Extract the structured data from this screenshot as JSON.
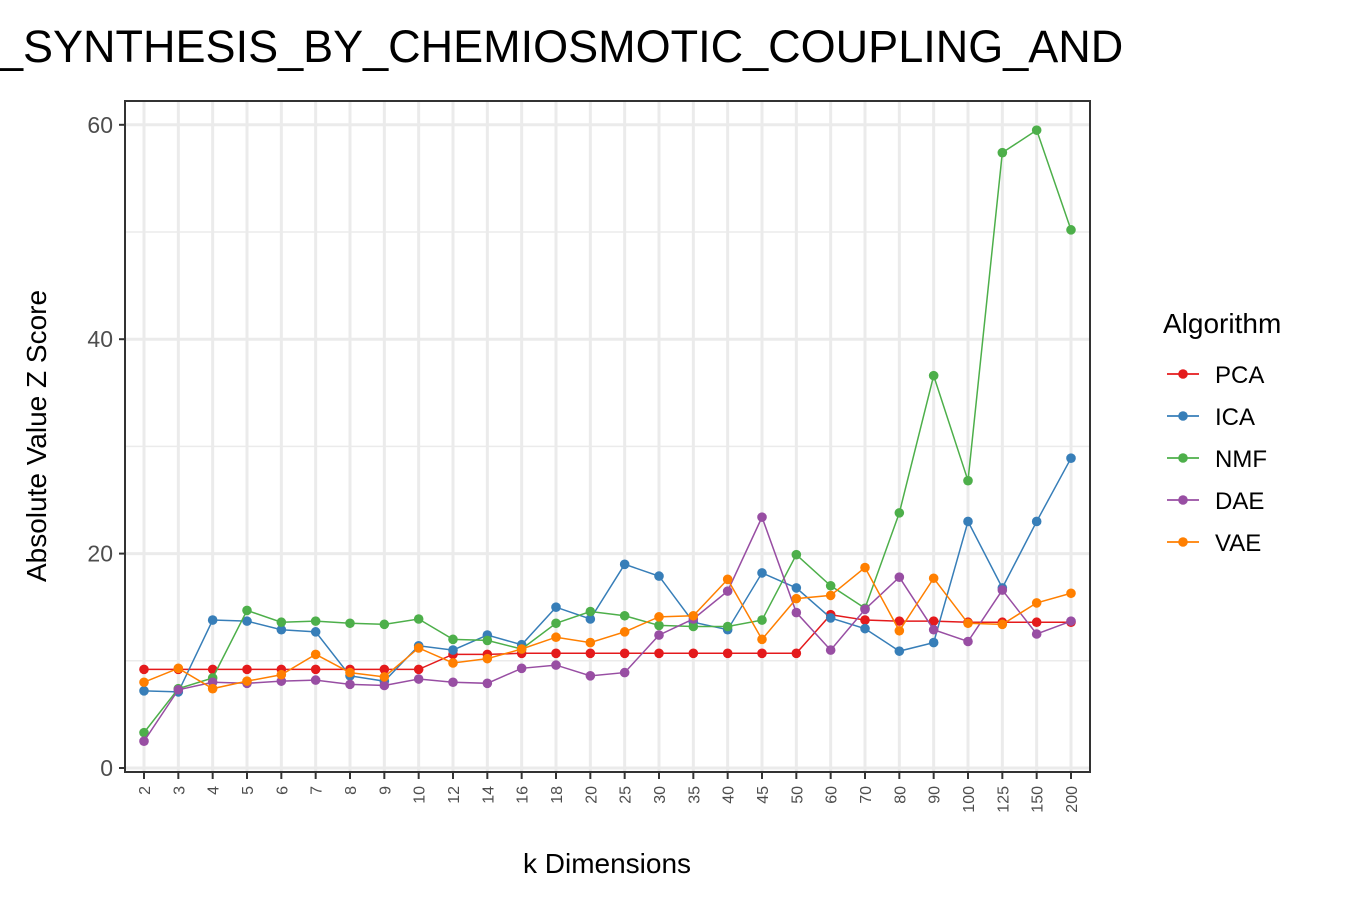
{
  "chart_data": {
    "type": "line",
    "title": "_SYNTHESIS_BY_CHEMIOSMOTIC_COUPLING_AND",
    "xlabel": "k Dimensions",
    "ylabel": "Absolute Value Z Score",
    "ylim": [
      0,
      62
    ],
    "yticks": [
      0,
      20,
      40,
      60
    ],
    "grid": true,
    "legend_position": "right",
    "legend_title": "Algorithm",
    "categories": [
      "2",
      "3",
      "4",
      "5",
      "6",
      "7",
      "8",
      "9",
      "10",
      "12",
      "14",
      "16",
      "18",
      "20",
      "25",
      "30",
      "35",
      "40",
      "45",
      "50",
      "60",
      "70",
      "80",
      "90",
      "100",
      "125",
      "150",
      "200"
    ],
    "series": [
      {
        "name": "PCA",
        "color": "#e41a1c",
        "values": [
          9.2,
          9.2,
          9.2,
          9.2,
          9.2,
          9.2,
          9.2,
          9.2,
          9.2,
          10.6,
          10.6,
          10.7,
          10.7,
          10.7,
          10.7,
          10.7,
          10.7,
          10.7,
          10.7,
          10.7,
          14.3,
          13.8,
          13.7,
          13.7,
          13.6,
          13.6,
          13.6,
          13.6
        ]
      },
      {
        "name": "ICA",
        "color": "#377eb8",
        "values": [
          7.2,
          7.1,
          13.8,
          13.7,
          12.9,
          12.7,
          8.6,
          8.1,
          11.4,
          11.0,
          12.4,
          11.5,
          15.0,
          13.9,
          19.0,
          17.9,
          13.6,
          12.9,
          18.2,
          16.8,
          14.0,
          13.0,
          10.9,
          11.7,
          23.0,
          16.8,
          23.0,
          28.9
        ]
      },
      {
        "name": "NMF",
        "color": "#4daf4a",
        "values": [
          3.3,
          7.4,
          8.4,
          14.7,
          13.6,
          13.7,
          13.5,
          13.4,
          13.9,
          12.0,
          11.9,
          11.1,
          13.5,
          14.6,
          14.2,
          13.3,
          13.2,
          13.2,
          13.8,
          19.9,
          17.0,
          14.9,
          23.8,
          36.6,
          26.8,
          57.4,
          59.5,
          50.2
        ]
      },
      {
        "name": "DAE",
        "color": "#984ea3",
        "values": [
          2.5,
          7.3,
          8.0,
          7.9,
          8.1,
          8.2,
          7.8,
          7.7,
          8.3,
          8.0,
          7.9,
          9.3,
          9.6,
          8.6,
          8.9,
          12.4,
          13.9,
          16.5,
          23.4,
          14.5,
          11.0,
          14.8,
          17.8,
          12.9,
          11.8,
          16.6,
          12.5,
          13.7
        ]
      },
      {
        "name": "VAE",
        "color": "#ff7f00",
        "values": [
          8.0,
          9.3,
          7.4,
          8.1,
          8.7,
          10.6,
          8.9,
          8.5,
          11.2,
          9.8,
          10.2,
          11.1,
          12.2,
          11.7,
          12.7,
          14.1,
          14.2,
          17.6,
          12.0,
          15.8,
          16.1,
          18.7,
          12.8,
          17.7,
          13.5,
          13.4,
          15.4,
          16.3
        ]
      }
    ]
  }
}
